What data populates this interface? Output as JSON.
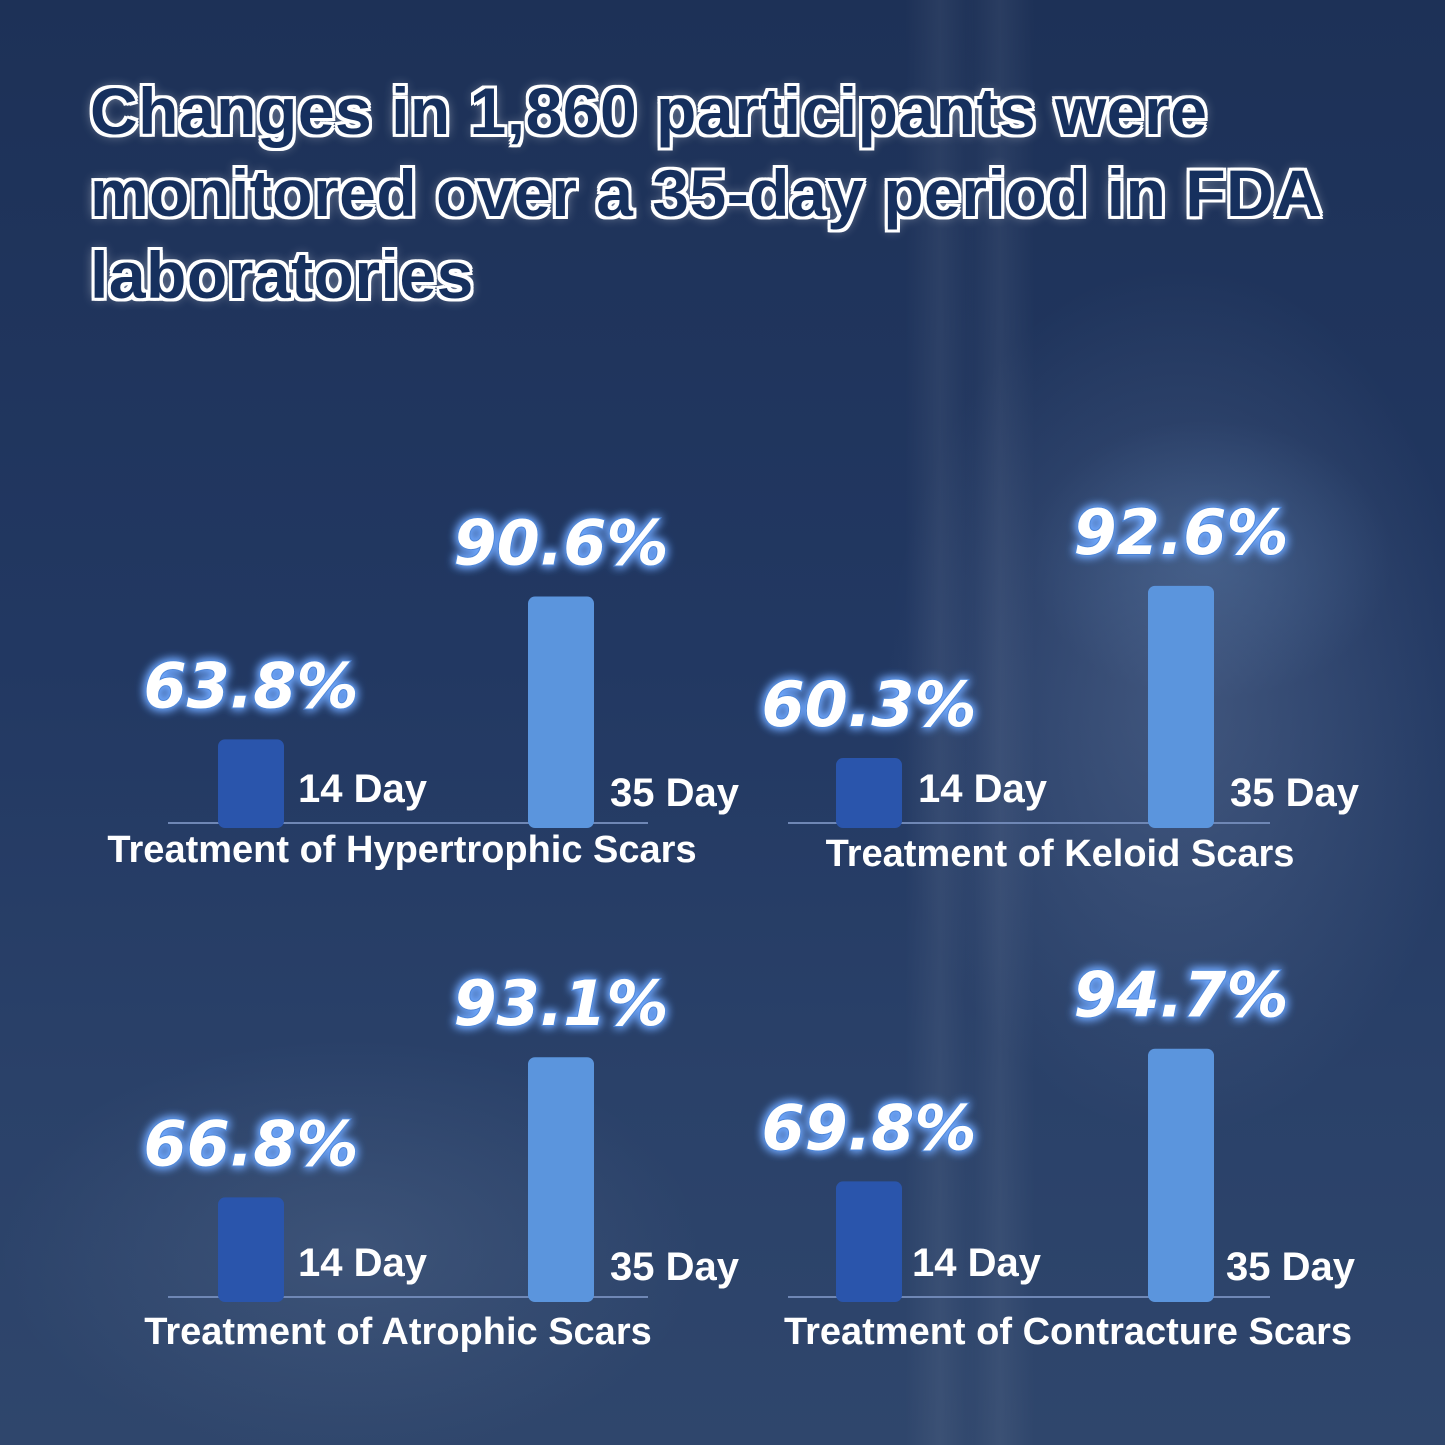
{
  "title": "Changes in 1,860 participants were monitored over a 35-day period in FDA laboratories",
  "colors": {
    "bar_14_day": "#2a55ac",
    "bar_35_day": "#5b95dd",
    "baseline": "#6f87b5",
    "glow": "#6fa8ff"
  },
  "chart_data": [
    {
      "type": "bar",
      "title": "Treatment of Hypertrophic Scars",
      "categories": [
        "14 Day",
        "35 Day"
      ],
      "values": [
        63.8,
        90.6
      ],
      "value_labels": [
        "63.8%",
        "90.6%"
      ]
    },
    {
      "type": "bar",
      "title": "Treatment of Keloid Scars",
      "categories": [
        "14 Day",
        "35 Day"
      ],
      "values": [
        60.3,
        92.6
      ],
      "value_labels": [
        "60.3%",
        "92.6%"
      ]
    },
    {
      "type": "bar",
      "title": "Treatment of Atrophic Scars",
      "categories": [
        "14 Day",
        "35 Day"
      ],
      "values": [
        66.8,
        93.1
      ],
      "value_labels": [
        "66.8%",
        "93.1%"
      ]
    },
    {
      "type": "bar",
      "title": "Treatment of Contracture Scars",
      "categories": [
        "14 Day",
        "35 Day"
      ],
      "values": [
        69.8,
        94.7
      ],
      "value_labels": [
        "69.8%",
        "94.7%"
      ]
    }
  ]
}
